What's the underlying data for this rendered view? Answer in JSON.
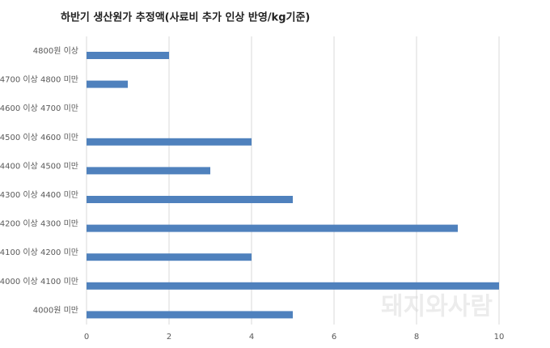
{
  "chart_data": {
    "type": "bar",
    "orientation": "horizontal",
    "title": "하반기 생산원가 추정액(사료비 추가 인상 반영/kg기준)",
    "categories": [
      "4800원 이상",
      "4700 이상 4800 미만",
      "4600 이상 4700 미만",
      "4500 이상 4600 미만",
      "4400 이상 4500 미만",
      "4300 이상 4400 미만",
      "4200 이상 4300 미만",
      "4100 이상 4200 미만",
      "4000 이상 4100 미만",
      "4000원 미만"
    ],
    "values": [
      2,
      1,
      0,
      4,
      3,
      5,
      9,
      4,
      10,
      5
    ],
    "color": "#4f81bd",
    "xlim": [
      0,
      10
    ],
    "xticks": [
      0,
      2,
      4,
      6,
      8,
      10
    ],
    "grid": true,
    "watermark": "돼지와사람"
  }
}
